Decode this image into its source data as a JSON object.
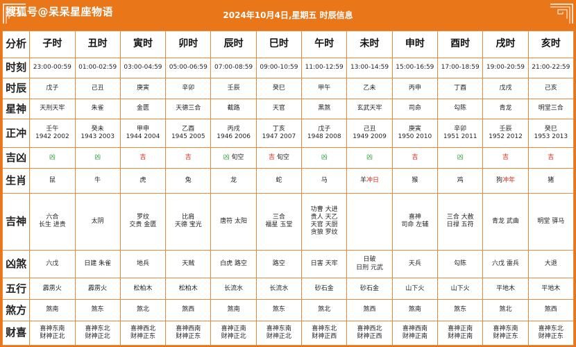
{
  "header": {
    "watermark": "搜狐号@呆呆星座物语",
    "title": "2024年10月4日,星期五 时辰信息"
  },
  "colors": {
    "background": "#e9771a",
    "border": "#e9883a",
    "ji": "#2aa23a",
    "xiong": "#e2231a"
  },
  "table": {
    "corner_label": "分析",
    "columns": [
      "子时",
      "丑时",
      "寅时",
      "卯时",
      "辰时",
      "巳时",
      "午时",
      "未时",
      "申时",
      "酉时",
      "戌时",
      "亥时"
    ],
    "rows": [
      {
        "label": "时刻",
        "cells": [
          [
            {
              "t": "23:00-00:59"
            }
          ],
          [
            {
              "t": "01:00-02:59"
            }
          ],
          [
            {
              "t": "03:00-04:59"
            }
          ],
          [
            {
              "t": "05:00-06:59"
            }
          ],
          [
            {
              "t": "07:00-08:59"
            }
          ],
          [
            {
              "t": "09:00-10:59"
            }
          ],
          [
            {
              "t": "11:00-12:59"
            }
          ],
          [
            {
              "t": "13:00-14:59"
            }
          ],
          [
            {
              "t": "15:00-16:59"
            }
          ],
          [
            {
              "t": "17:00-18:59"
            }
          ],
          [
            {
              "t": "19:00-20:59"
            }
          ],
          [
            {
              "t": "21:00-22:59"
            }
          ]
        ]
      },
      {
        "label": "时辰",
        "cells": [
          [
            {
              "t": "戊子"
            }
          ],
          [
            {
              "t": "己丑"
            }
          ],
          [
            {
              "t": "庚寅"
            }
          ],
          [
            {
              "t": "辛卯"
            }
          ],
          [
            {
              "t": "壬辰"
            }
          ],
          [
            {
              "t": "癸巳"
            }
          ],
          [
            {
              "t": "甲午"
            }
          ],
          [
            {
              "t": "乙未"
            }
          ],
          [
            {
              "t": "丙申"
            }
          ],
          [
            {
              "t": "丁酉"
            }
          ],
          [
            {
              "t": "戊戌"
            }
          ],
          [
            {
              "t": "己亥"
            }
          ]
        ]
      },
      {
        "label": "星神",
        "cells": [
          [
            {
              "t": "天刑天牢"
            }
          ],
          [
            {
              "t": "朱雀"
            }
          ],
          [
            {
              "t": "金匮"
            }
          ],
          [
            {
              "t": "天德三合"
            }
          ],
          [
            {
              "t": "截路"
            }
          ],
          [
            {
              "t": "天官"
            }
          ],
          [
            {
              "t": "黑煞"
            }
          ],
          [
            {
              "t": "玄武天牢"
            }
          ],
          [
            {
              "t": "司命"
            }
          ],
          [
            {
              "t": "勾陈"
            }
          ],
          [
            {
              "t": "青龙"
            }
          ],
          [
            {
              "t": "明堂三合"
            }
          ]
        ]
      },
      {
        "label": "正冲",
        "cells": [
          [
            {
              "t": "壬午"
            },
            {
              "t": "1942 2002"
            }
          ],
          [
            {
              "t": "癸未"
            },
            {
              "t": "1943 2003"
            }
          ],
          [
            {
              "t": "甲申"
            },
            {
              "t": "1944 2004"
            }
          ],
          [
            {
              "t": "乙酉"
            },
            {
              "t": "1945 2005"
            }
          ],
          [
            {
              "t": "丙戌"
            },
            {
              "t": "1946 2006"
            }
          ],
          [
            {
              "t": "丁亥"
            },
            {
              "t": "1947 2007"
            }
          ],
          [
            {
              "t": "戊子"
            },
            {
              "t": "1948 2008"
            }
          ],
          [
            {
              "t": "己丑"
            },
            {
              "t": "1949 2009"
            }
          ],
          [
            {
              "t": "庚寅"
            },
            {
              "t": "1950 2010"
            }
          ],
          [
            {
              "t": "辛卯"
            },
            {
              "t": "1951 2011"
            }
          ],
          [
            {
              "t": "壬辰"
            },
            {
              "t": "1952 2012"
            }
          ],
          [
            {
              "t": "癸巳"
            },
            {
              "t": "1953 2013"
            }
          ]
        ]
      },
      {
        "label": "吉凶",
        "cells": [
          [
            {
              "s": [
                {
                  "t": "凶",
                  "c": "green"
                }
              ]
            }
          ],
          [
            {
              "s": [
                {
                  "t": "凶",
                  "c": "green"
                }
              ]
            }
          ],
          [
            {
              "s": [
                {
                  "t": "吉",
                  "c": "red"
                }
              ]
            }
          ],
          [
            {
              "s": [
                {
                  "t": "吉",
                  "c": "red"
                }
              ]
            }
          ],
          [
            {
              "s": [
                {
                  "t": "凶",
                  "c": "green"
                },
                {
                  "t": " 旬空"
                }
              ]
            }
          ],
          [
            {
              "s": [
                {
                  "t": "吉",
                  "c": "red"
                },
                {
                  "t": " 旬空"
                }
              ]
            }
          ],
          [
            {
              "s": [
                {
                  "t": "凶",
                  "c": "green"
                }
              ]
            }
          ],
          [
            {
              "s": [
                {
                  "t": "凶",
                  "c": "green"
                }
              ]
            }
          ],
          [
            {
              "s": [
                {
                  "t": "吉",
                  "c": "red"
                }
              ]
            }
          ],
          [
            {
              "s": [
                {
                  "t": "凶",
                  "c": "green"
                }
              ]
            }
          ],
          [
            {
              "s": [
                {
                  "t": "吉",
                  "c": "red"
                }
              ]
            }
          ],
          [
            {
              "s": [
                {
                  "t": "吉",
                  "c": "red"
                }
              ]
            }
          ]
        ]
      },
      {
        "label": "生肖",
        "cells": [
          [
            {
              "t": "鼠"
            }
          ],
          [
            {
              "t": "牛"
            }
          ],
          [
            {
              "t": "虎"
            }
          ],
          [
            {
              "t": "兔"
            }
          ],
          [
            {
              "t": "龙"
            }
          ],
          [
            {
              "t": "蛇"
            }
          ],
          [
            {
              "t": "马"
            }
          ],
          [
            {
              "s": [
                {
                  "t": "羊"
                },
                {
                  "t": "冲日",
                  "c": "red"
                }
              ]
            }
          ],
          [
            {
              "t": "猴"
            }
          ],
          [
            {
              "t": "鸡"
            }
          ],
          [
            {
              "s": [
                {
                  "t": "狗"
                },
                {
                  "t": "冲年",
                  "c": "red"
                }
              ]
            }
          ],
          [
            {
              "t": "猪"
            }
          ]
        ]
      },
      {
        "label": "吉神",
        "cells": [
          [
            {
              "t": "六合"
            },
            {
              "t": "长生 进贵"
            }
          ],
          [
            {
              "t": "太阴"
            }
          ],
          [
            {
              "t": "罗纹"
            },
            {
              "t": "交贵 金匮"
            }
          ],
          [
            {
              "t": "比肩"
            },
            {
              "t": "天德 宝光"
            }
          ],
          [
            {
              "t": "唐符 太阳"
            }
          ],
          [
            {
              "t": "三合"
            },
            {
              "t": "福星 玉堂"
            }
          ],
          [
            {
              "t": "功曹 大进"
            },
            {
              "t": "贵人 天乙"
            },
            {
              "t": "天官 天厨"
            },
            {
              "t": "贪狼 罗纹"
            }
          ],
          [],
          [
            {
              "t": "喜神"
            },
            {
              "t": "司命 左辅"
            }
          ],
          [
            {
              "t": "三合 大赦"
            },
            {
              "t": "日禄 五符"
            }
          ],
          [
            {
              "t": "青龙 武曲"
            }
          ],
          [
            {
              "t": "明堂 驿马"
            }
          ]
        ]
      },
      {
        "label": "凶煞",
        "cells": [
          [
            {
              "t": "六戊"
            }
          ],
          [
            {
              "t": "日建 朱雀"
            }
          ],
          [
            {
              "t": "地兵"
            }
          ],
          [
            {
              "t": "天贼"
            }
          ],
          [
            {
              "t": "白虎 路空"
            }
          ],
          [
            {
              "t": "路空"
            }
          ],
          [
            {
              "t": "日害 天牢"
            }
          ],
          [
            {
              "t": "日破"
            },
            {
              "t": "日刑 元武"
            }
          ],
          [
            {
              "t": "天兵"
            }
          ],
          [
            {
              "t": "勾陈"
            }
          ],
          [
            {
              "t": "六戊 雷兵"
            }
          ],
          [
            {
              "t": "大退"
            }
          ]
        ]
      },
      {
        "label": "五行",
        "cells": [
          [
            {
              "t": "霹雳火"
            }
          ],
          [
            {
              "t": "霹雳火"
            }
          ],
          [
            {
              "t": "松柏木"
            }
          ],
          [
            {
              "t": "松柏木"
            }
          ],
          [
            {
              "t": "长流水"
            }
          ],
          [
            {
              "t": "长流水"
            }
          ],
          [
            {
              "t": "砂石金"
            }
          ],
          [
            {
              "t": "砂石金"
            }
          ],
          [
            {
              "t": "山下火"
            }
          ],
          [
            {
              "t": "山下火"
            }
          ],
          [
            {
              "t": "平地木"
            }
          ],
          [
            {
              "t": "平地木"
            }
          ]
        ]
      },
      {
        "label": "煞方",
        "cells": [
          [
            {
              "t": "煞南"
            }
          ],
          [
            {
              "t": "煞东"
            }
          ],
          [
            {
              "t": "煞北"
            }
          ],
          [
            {
              "t": "煞西"
            }
          ],
          [
            {
              "t": "煞南"
            }
          ],
          [
            {
              "t": "煞东"
            }
          ],
          [
            {
              "t": "煞北"
            }
          ],
          [
            {
              "t": "煞西"
            }
          ],
          [
            {
              "t": "煞南"
            }
          ],
          [
            {
              "t": "煞东"
            }
          ],
          [
            {
              "t": "煞北"
            }
          ],
          [
            {
              "t": "煞西"
            }
          ]
        ]
      },
      {
        "label": "财喜",
        "cells": [
          [
            {
              "t": "喜神东南"
            },
            {
              "t": "财神正北"
            }
          ],
          [
            {
              "t": "喜神东北"
            },
            {
              "t": "财神正北"
            }
          ],
          [
            {
              "t": "喜神西北"
            },
            {
              "t": "财神正东"
            }
          ],
          [
            {
              "t": "喜神西南"
            },
            {
              "t": "财神正东"
            }
          ],
          [
            {
              "t": "喜神正南"
            },
            {
              "t": "财神正北"
            }
          ],
          [
            {
              "t": "喜神东南"
            },
            {
              "t": "财神正北"
            }
          ],
          [
            {
              "t": "喜神东北"
            },
            {
              "t": "财神正西"
            }
          ],
          [
            {
              "t": "喜神西北"
            },
            {
              "t": "财神正西"
            }
          ],
          [
            {
              "t": "喜神西南"
            },
            {
              "t": "财神正南"
            }
          ],
          [
            {
              "t": "喜神正南"
            },
            {
              "t": "财神正南"
            }
          ],
          [
            {
              "t": "喜神东南"
            },
            {
              "t": "财神正东"
            }
          ],
          [
            {
              "t": "喜神东北"
            },
            {
              "t": "财神正东"
            }
          ]
        ]
      }
    ]
  }
}
